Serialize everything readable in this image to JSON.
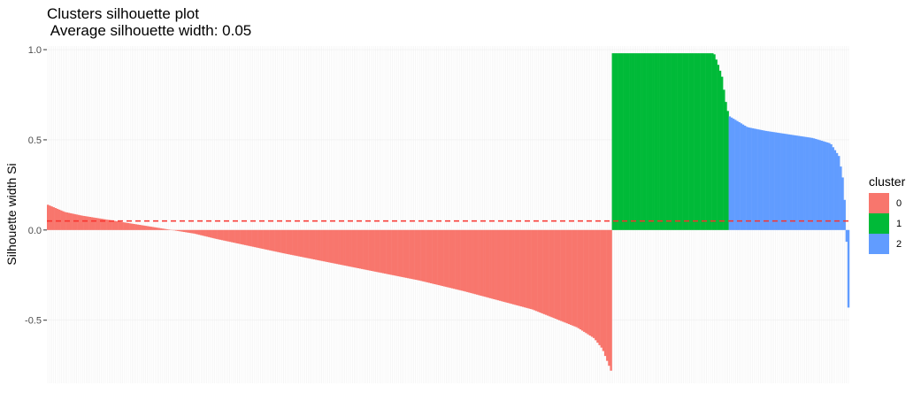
{
  "chart_data": {
    "type": "bar",
    "title": "Clusters silhouette plot",
    "subtitle": " Average silhouette width: 0.05",
    "xlabel": "",
    "ylabel": "Silhouette width Si",
    "ylim": [
      -0.85,
      1.02
    ],
    "yticks": [
      {
        "value": -0.5,
        "label": "-0.5"
      },
      {
        "value": 0.0,
        "label": "0.0"
      },
      {
        "value": 0.5,
        "label": "0.5"
      },
      {
        "value": 1.0,
        "label": "1.0"
      }
    ],
    "grid": true,
    "reference_line": {
      "value": 0.05,
      "style": "dashed",
      "color": "#f8322c"
    },
    "legend": {
      "title": "cluster",
      "position": "right",
      "entries": [
        {
          "label": "0",
          "color": "#f8766d"
        },
        {
          "label": "1",
          "color": "#00ba38"
        },
        {
          "label": "2",
          "color": "#619cff"
        }
      ]
    },
    "series": [
      {
        "name": "0",
        "color": "#f8766d",
        "count": 295,
        "profile": [
          [
            0.0,
            0.14
          ],
          [
            0.03,
            0.1
          ],
          [
            0.06,
            0.08
          ],
          [
            0.1,
            0.06
          ],
          [
            0.14,
            0.04
          ],
          [
            0.18,
            0.02
          ],
          [
            0.22,
            0.0
          ],
          [
            0.26,
            -0.02
          ],
          [
            0.3,
            -0.05
          ],
          [
            0.36,
            -0.09
          ],
          [
            0.42,
            -0.13
          ],
          [
            0.5,
            -0.18
          ],
          [
            0.58,
            -0.23
          ],
          [
            0.66,
            -0.28
          ],
          [
            0.74,
            -0.34
          ],
          [
            0.8,
            -0.39
          ],
          [
            0.86,
            -0.44
          ],
          [
            0.9,
            -0.49
          ],
          [
            0.94,
            -0.54
          ],
          [
            0.97,
            -0.6
          ],
          [
            0.985,
            -0.66
          ],
          [
            1.0,
            -0.78
          ]
        ]
      },
      {
        "name": "1",
        "color": "#00ba38",
        "count": 61,
        "profile": [
          [
            0.0,
            0.98
          ],
          [
            0.88,
            0.98
          ],
          [
            0.92,
            0.91
          ],
          [
            0.95,
            0.85
          ],
          [
            0.98,
            0.72
          ],
          [
            1.0,
            0.66
          ]
        ]
      },
      {
        "name": "2",
        "color": "#619cff",
        "count": 63,
        "profile": [
          [
            0.0,
            0.63
          ],
          [
            0.15,
            0.57
          ],
          [
            0.3,
            0.55
          ],
          [
            0.5,
            0.53
          ],
          [
            0.7,
            0.51
          ],
          [
            0.85,
            0.48
          ],
          [
            0.92,
            0.41
          ],
          [
            0.96,
            0.26
          ],
          [
            0.98,
            0.02
          ],
          [
            0.99,
            -0.2
          ],
          [
            1.0,
            -0.43
          ]
        ]
      }
    ]
  }
}
